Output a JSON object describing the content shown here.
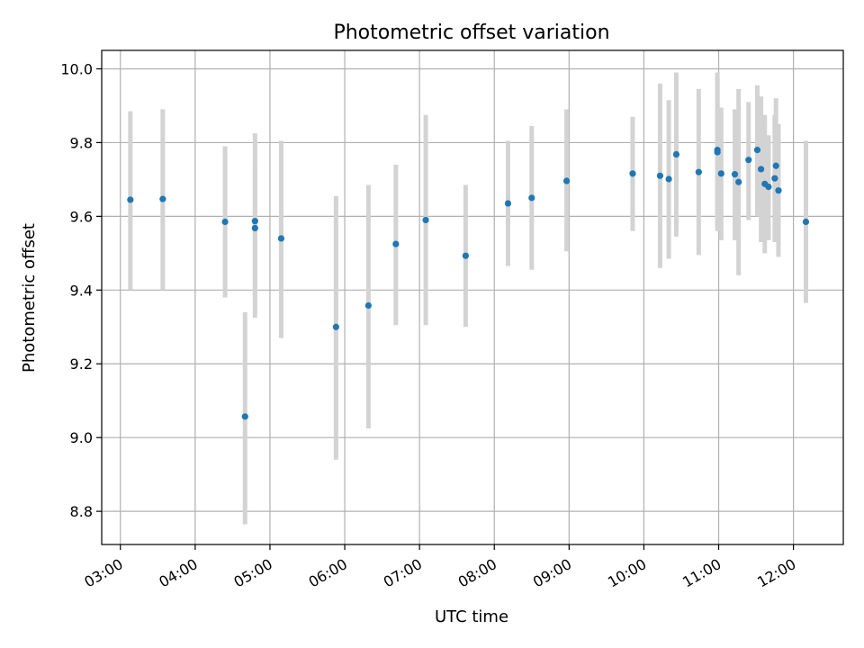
{
  "chart_data": {
    "type": "scatter",
    "title": "Photometric offset variation",
    "xlabel": "UTC time",
    "ylabel": "Photometric offset",
    "x_is_time": true,
    "xlim": [
      "02:45",
      "12:40"
    ],
    "ylim": [
      8.71,
      10.05
    ],
    "xticks": [
      "03:00",
      "04:00",
      "05:00",
      "06:00",
      "07:00",
      "08:00",
      "09:00",
      "10:00",
      "11:00",
      "12:00"
    ],
    "yticks": [
      8.8,
      9.0,
      9.2,
      9.4,
      9.6,
      9.8,
      10.0
    ],
    "ytick_labels": [
      "8.8",
      "9.0",
      "9.2",
      "9.4",
      "9.6",
      "9.8",
      "10.0"
    ],
    "grid": true,
    "marker_color": "#1f77b4",
    "errorbar_color": "#d3d3d3",
    "series": [
      {
        "points": [
          {
            "t": "03:08",
            "y": 9.645,
            "lo": 9.4,
            "hi": 9.885
          },
          {
            "t": "03:34",
            "y": 9.647,
            "lo": 9.4,
            "hi": 9.89
          },
          {
            "t": "04:24",
            "y": 9.585,
            "lo": 9.38,
            "hi": 9.79
          },
          {
            "t": "04:40",
            "y": 9.057,
            "lo": 8.765,
            "hi": 9.34
          },
          {
            "t": "04:48",
            "y": 9.587,
            "lo": 9.38,
            "hi": 9.825
          },
          {
            "t": "04:48",
            "y": 9.568,
            "lo": 9.325,
            "hi": 9.74
          },
          {
            "t": "05:09",
            "y": 9.54,
            "lo": 9.27,
            "hi": 9.805
          },
          {
            "t": "05:53",
            "y": 9.3,
            "lo": 8.94,
            "hi": 9.655
          },
          {
            "t": "06:19",
            "y": 9.358,
            "lo": 9.025,
            "hi": 9.685
          },
          {
            "t": "06:41",
            "y": 9.525,
            "lo": 9.305,
            "hi": 9.74
          },
          {
            "t": "07:05",
            "y": 9.59,
            "lo": 9.305,
            "hi": 9.875
          },
          {
            "t": "07:37",
            "y": 9.493,
            "lo": 9.3,
            "hi": 9.685
          },
          {
            "t": "08:11",
            "y": 9.635,
            "lo": 9.465,
            "hi": 9.805
          },
          {
            "t": "08:30",
            "y": 9.65,
            "lo": 9.455,
            "hi": 9.845
          },
          {
            "t": "08:58",
            "y": 9.696,
            "lo": 9.505,
            "hi": 9.89
          },
          {
            "t": "09:51",
            "y": 9.716,
            "lo": 9.56,
            "hi": 9.87
          },
          {
            "t": "10:13",
            "y": 9.71,
            "lo": 9.46,
            "hi": 9.96
          },
          {
            "t": "10:20",
            "y": 9.701,
            "lo": 9.485,
            "hi": 9.915
          },
          {
            "t": "10:26",
            "y": 9.768,
            "lo": 9.545,
            "hi": 9.99
          },
          {
            "t": "10:44",
            "y": 9.72,
            "lo": 9.495,
            "hi": 9.945
          },
          {
            "t": "10:59",
            "y": 9.78,
            "lo": 9.57,
            "hi": 9.99
          },
          {
            "t": "10:59",
            "y": 9.774,
            "lo": 9.56,
            "hi": 9.975
          },
          {
            "t": "11:02",
            "y": 9.716,
            "lo": 9.535,
            "hi": 9.895
          },
          {
            "t": "11:13",
            "y": 9.714,
            "lo": 9.535,
            "hi": 9.89
          },
          {
            "t": "11:16",
            "y": 9.693,
            "lo": 9.44,
            "hi": 9.945
          },
          {
            "t": "11:24",
            "y": 9.753,
            "lo": 9.59,
            "hi": 9.91
          },
          {
            "t": "11:31",
            "y": 9.78,
            "lo": 9.6,
            "hi": 9.955
          },
          {
            "t": "11:34",
            "y": 9.728,
            "lo": 9.53,
            "hi": 9.925
          },
          {
            "t": "11:37",
            "y": 9.688,
            "lo": 9.5,
            "hi": 9.875
          },
          {
            "t": "11:40",
            "y": 9.68,
            "lo": 9.535,
            "hi": 9.82
          },
          {
            "t": "11:45",
            "y": 9.703,
            "lo": 9.53,
            "hi": 9.875
          },
          {
            "t": "11:46",
            "y": 9.737,
            "lo": 9.53,
            "hi": 9.92
          },
          {
            "t": "11:48",
            "y": 9.67,
            "lo": 9.49,
            "hi": 9.85
          },
          {
            "t": "12:10",
            "y": 9.585,
            "lo": 9.365,
            "hi": 9.805
          }
        ]
      }
    ]
  }
}
